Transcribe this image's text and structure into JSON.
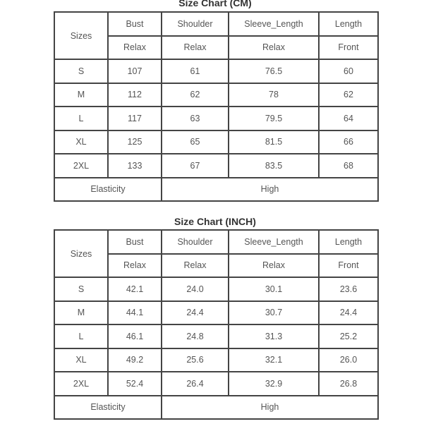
{
  "tables": [
    {
      "title": "Size Chart (CM)",
      "size_header": "Sizes",
      "headers": [
        "Bust",
        "Shoulder",
        "Sleeve_Length",
        "Length"
      ],
      "subheaders": [
        "Relax",
        "Relax",
        "Relax",
        "Front"
      ],
      "rows": [
        [
          "S",
          "107",
          "61",
          "76.5",
          "60"
        ],
        [
          "M",
          "112",
          "62",
          "78",
          "62"
        ],
        [
          "L",
          "117",
          "63",
          "79.5",
          "64"
        ],
        [
          "XL",
          "125",
          "65",
          "81.5",
          "66"
        ],
        [
          "2XL",
          "133",
          "67",
          "83.5",
          "68"
        ]
      ],
      "footer_label": "Elasticity",
      "footer_value": "High"
    },
    {
      "title": "Size Chart (INCH)",
      "size_header": "Sizes",
      "headers": [
        "Bust",
        "Shoulder",
        "Sleeve_Length",
        "Length"
      ],
      "subheaders": [
        "Relax",
        "Relax",
        "Relax",
        "Front"
      ],
      "rows": [
        [
          "S",
          "42.1",
          "24.0",
          "30.1",
          "23.6"
        ],
        [
          "M",
          "44.1",
          "24.4",
          "30.7",
          "24.4"
        ],
        [
          "L",
          "46.1",
          "24.8",
          "31.3",
          "25.2"
        ],
        [
          "XL",
          "49.2",
          "25.6",
          "32.1",
          "26.0"
        ],
        [
          "2XL",
          "52.4",
          "26.4",
          "32.9",
          "26.8"
        ]
      ],
      "footer_label": "Elasticity",
      "footer_value": "High"
    }
  ]
}
